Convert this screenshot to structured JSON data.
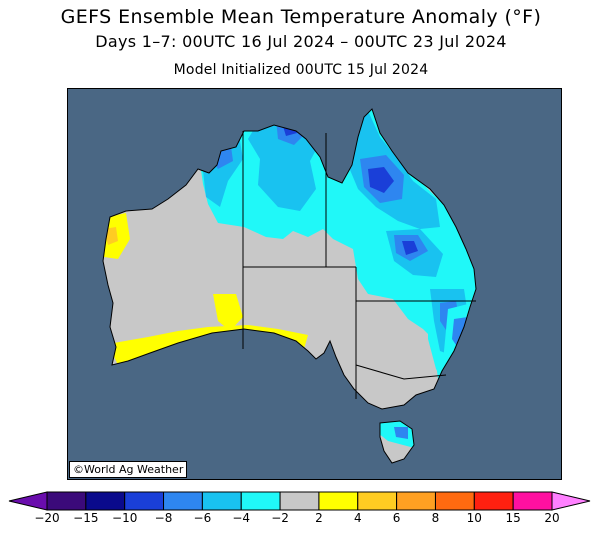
{
  "header": {
    "title": "GEFS Ensemble Mean Temperature Anomaly (°F)",
    "valid_period": "Days 1–7: 00UTC 16 Jul 2024 – 00UTC 23 Jul 2024",
    "initialized": "Model Initialized 00UTC 15 Jul 2024"
  },
  "map": {
    "region": "Australia",
    "credit": "©World Ag Weather",
    "ocean_color": "#4a6784",
    "land_neutral_color": "#c8c8c8",
    "anomaly_areas": [
      {
        "area": "northern and eastern Queensland / Cape York / Top End / Kimberley",
        "category": "-4 to -2"
      },
      {
        "area": "central Queensland",
        "category": "-8 to -6"
      },
      {
        "area": "Cape York and Top End cores",
        "category": "-6 to -4"
      },
      {
        "area": "western Western Australia coast",
        "category": "2 to 4"
      },
      {
        "area": "south coast near Great Australian Bight",
        "category": "2 to 4"
      },
      {
        "area": "New South Wales coast",
        "category": "-4 to -2"
      },
      {
        "area": "Tasmania",
        "category": "-4 to -2"
      }
    ]
  },
  "legend": {
    "ticks": [
      "−20",
      "−15",
      "−10",
      "−8",
      "−6",
      "−4",
      "−2",
      "2",
      "4",
      "6",
      "8",
      "10",
      "15",
      "20"
    ],
    "colors": [
      "#6a0dad",
      "#3b0a7a",
      "#0a0a8c",
      "#1a3fd8",
      "#2e86f0",
      "#19c2f0",
      "#20f8f8",
      "#c8c8c8",
      "#ffff00",
      "#ffcc22",
      "#ffa022",
      "#ff6a10",
      "#ff2010",
      "#ff10a0",
      "#ff80ff"
    ]
  }
}
